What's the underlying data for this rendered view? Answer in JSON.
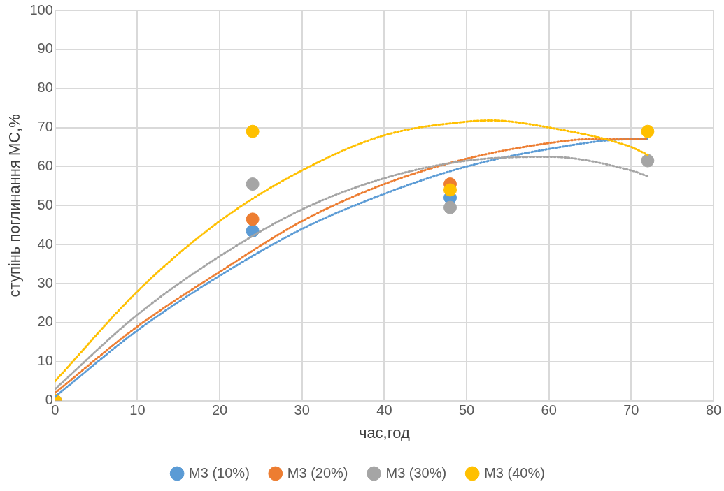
{
  "chart_data": {
    "type": "scatter",
    "xlabel": "час,год",
    "ylabel": "ступінь поглинання МС,%",
    "x": [
      0,
      24,
      48,
      72
    ],
    "xlim": [
      0,
      80
    ],
    "xticks": [
      0,
      10,
      20,
      30,
      40,
      50,
      60,
      70,
      80
    ],
    "ylim": [
      0,
      100
    ],
    "yticks": [
      0,
      10,
      20,
      30,
      40,
      50,
      60,
      70,
      80,
      90,
      100
    ],
    "grid": true,
    "legend": "bottom",
    "marker": "circle",
    "series": [
      {
        "name": "М3 (10%)",
        "color": "#5b9bd5",
        "values": [
          0,
          43.5,
          52,
          null
        ]
      },
      {
        "name": "М3 (20%)",
        "color": "#ed7d31",
        "values": [
          0,
          46.5,
          55.5,
          null
        ]
      },
      {
        "name": "М3 (30%)",
        "color": "#a5a5a5",
        "values": [
          0,
          55.5,
          49.5,
          61.5
        ]
      },
      {
        "name": "М3 (40%)",
        "color": "#ffc000",
        "values": [
          0,
          69,
          54,
          69
        ]
      },
      {
        "type": "line",
        "marker": "none",
        "line_style": "dotted",
        "color": "#5b9bd5",
        "x": [
          0,
          10,
          20,
          30,
          40,
          50,
          60,
          70,
          72
        ],
        "values": [
          1,
          18,
          32,
          44,
          53,
          60,
          64.5,
          67,
          67
        ]
      },
      {
        "type": "line",
        "marker": "none",
        "line_style": "dotted",
        "color": "#ed7d31",
        "x": [
          0,
          10,
          20,
          30,
          40,
          50,
          60,
          65,
          72
        ],
        "values": [
          2,
          19,
          33,
          46,
          55.5,
          62,
          66,
          67,
          67
        ]
      },
      {
        "type": "line",
        "marker": "none",
        "line_style": "dotted",
        "color": "#a5a5a5",
        "x": [
          0,
          10,
          20,
          30,
          40,
          50,
          60,
          70,
          72
        ],
        "values": [
          3,
          22,
          37,
          49,
          57,
          61.5,
          62.5,
          59,
          57.5
        ]
      },
      {
        "type": "line",
        "marker": "none",
        "line_style": "dotted",
        "color": "#ffc000",
        "x": [
          0,
          10,
          20,
          30,
          40,
          50,
          53,
          60,
          70,
          72
        ],
        "values": [
          5,
          28,
          46,
          59,
          68,
          71.5,
          71.8,
          70,
          65,
          63
        ]
      }
    ]
  }
}
